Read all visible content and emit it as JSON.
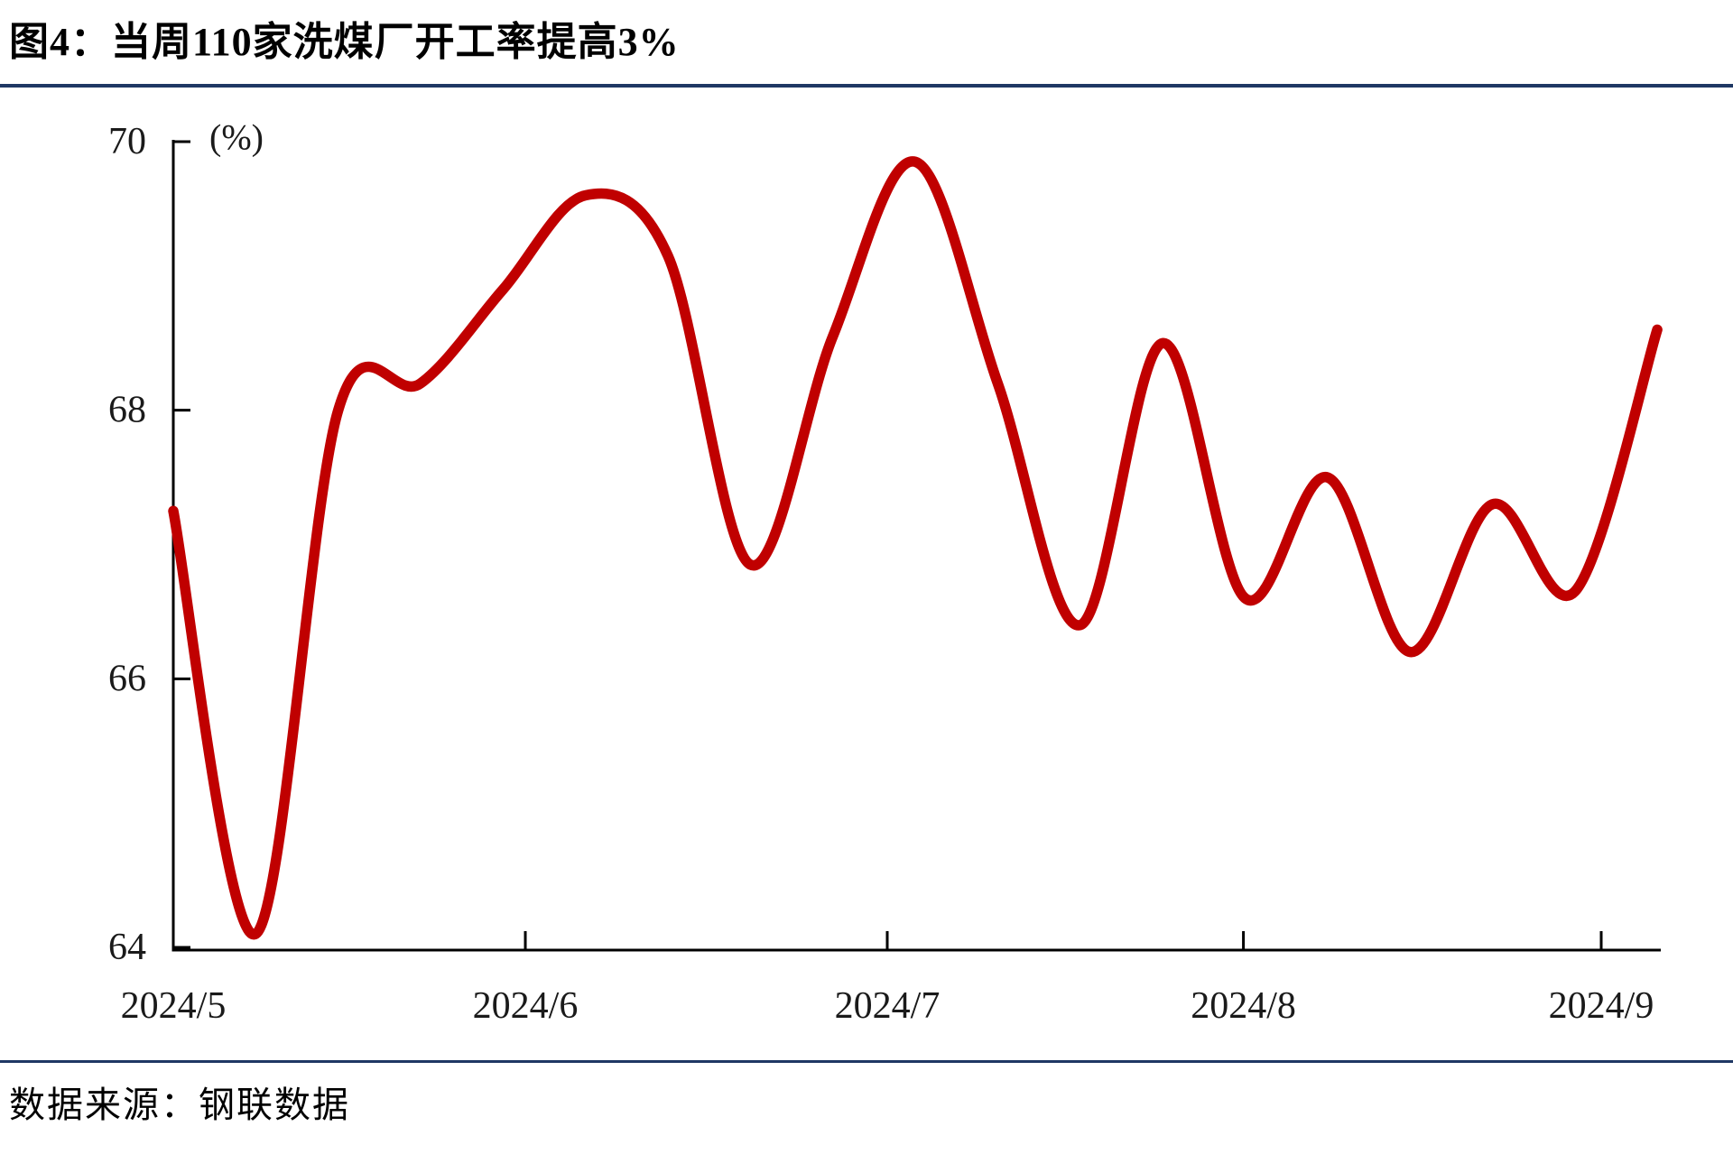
{
  "title": "图4：当周110家洗煤厂开工率提高3%",
  "footer": {
    "source": "数据来源：钢联数据"
  },
  "colors": {
    "line": "#C00000",
    "divider": "#1F3864",
    "axis": "#000000",
    "text": "#1A1A1A",
    "background": "#FFFFFF"
  },
  "chart_data": {
    "type": "line",
    "title": "当周110家洗煤厂开工率提高3%",
    "unit_label": "(%)",
    "smooth": true,
    "grid": false,
    "legend": "none",
    "line_color": "#C00000",
    "x_unit": "week",
    "series": [
      {
        "name": "110家洗煤厂开工率(%)",
        "values": [
          67.25,
          64.1,
          68.0,
          68.2,
          68.9,
          69.6,
          69.15,
          66.85,
          68.55,
          69.85,
          68.2,
          66.4,
          68.5,
          66.6,
          67.5,
          66.2,
          67.3,
          66.65,
          68.6
        ]
      }
    ],
    "x_ticks": [
      {
        "label": "2024/5",
        "week": 0
      },
      {
        "label": "2024/6",
        "week": 4.27
      },
      {
        "label": "2024/7",
        "week": 8.66
      },
      {
        "label": "2024/8",
        "week": 12.98
      },
      {
        "label": "2024/9",
        "week": 17.32
      }
    ],
    "axis_end_week": 18.05,
    "y_ticks": [
      70,
      68,
      66,
      64
    ],
    "ylim": [
      64,
      70
    ]
  }
}
